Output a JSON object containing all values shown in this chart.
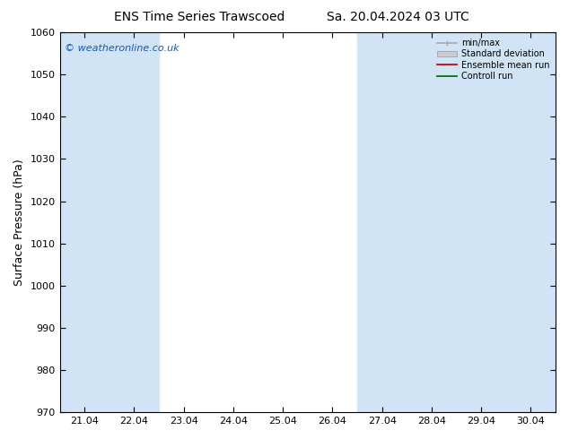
{
  "title_left": "ENS Time Series Trawscoed",
  "title_right": "Sa. 20.04.2024 03 UTC",
  "ylabel": "Surface Pressure (hPa)",
  "ylim": [
    970,
    1060
  ],
  "yticks": [
    970,
    980,
    990,
    1000,
    1010,
    1020,
    1030,
    1040,
    1050,
    1060
  ],
  "xlabels": [
    "21.04",
    "22.04",
    "23.04",
    "24.04",
    "25.04",
    "26.04",
    "27.04",
    "28.04",
    "29.04",
    "30.04"
  ],
  "watermark": "© weatheronline.co.uk",
  "watermark_color": "#1155cc",
  "bg_color": "#ffffff",
  "plot_bg_color": "#ffffff",
  "shade_color": "#d0e4f5",
  "legend_items": [
    "min/max",
    "Standard deviation",
    "Ensemble mean run",
    "Controll run"
  ],
  "minmax_color": "#aaaaaa",
  "std_color": "#cccccc",
  "ens_color": "#dd0000",
  "ctrl_color": "#007700",
  "title_fontsize": 10,
  "label_fontsize": 9,
  "tick_fontsize": 8,
  "shaded_cols_idx": [
    0,
    1,
    6,
    7,
    8,
    9
  ]
}
